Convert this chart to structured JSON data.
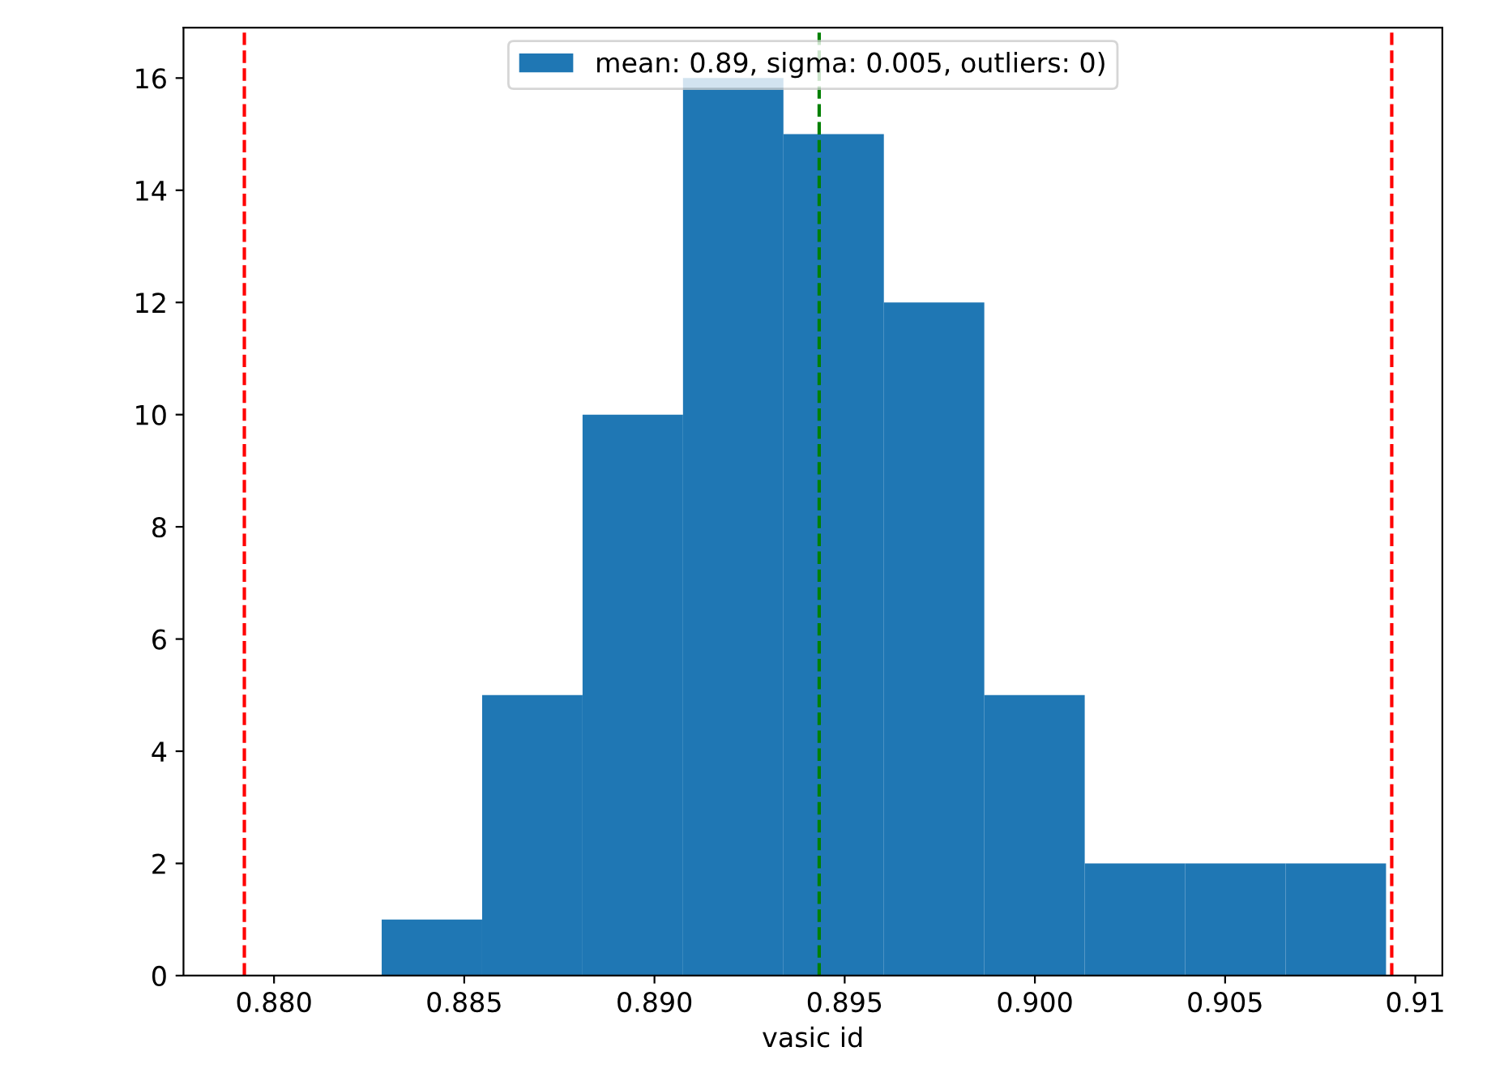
{
  "chart_data": {
    "type": "histogram",
    "xlabel": "vasic id",
    "bins": [
      0.88283,
      0.88547,
      0.88811,
      0.89075,
      0.89339,
      0.89603,
      0.89867,
      0.90131,
      0.90395,
      0.90659,
      0.90923
    ],
    "series": [
      {
        "name": "mean: 0.89, sigma: 0.005, outliers: 0)",
        "color": "#1f77b4",
        "values": [
          1,
          5,
          10,
          16,
          15,
          12,
          5,
          2,
          2,
          2
        ]
      }
    ],
    "xlim": [
      0.87762,
      0.91071
    ],
    "xticks": [
      {
        "value": 0.88,
        "label": "0.880"
      },
      0.885,
      {
        "value": 0.89,
        "label": "0.890"
      },
      0.895,
      {
        "value": 0.9,
        "label": "0.900"
      },
      0.905,
      0.91
    ],
    "ylim": [
      0,
      16.9
    ],
    "yticks": [
      0,
      2,
      4,
      6,
      8,
      10,
      12,
      14,
      16
    ],
    "ref_lines": [
      {
        "axis": "x",
        "value": 0.87922,
        "color": "#ff0000",
        "line_style": "dashed"
      },
      {
        "axis": "x",
        "value": 0.90938,
        "color": "#ff0000",
        "line_style": "dashed"
      },
      {
        "axis": "x",
        "value": 0.89433,
        "color": "#008000",
        "line_style": "dashed"
      }
    ],
    "legend": "top",
    "grid": false
  }
}
